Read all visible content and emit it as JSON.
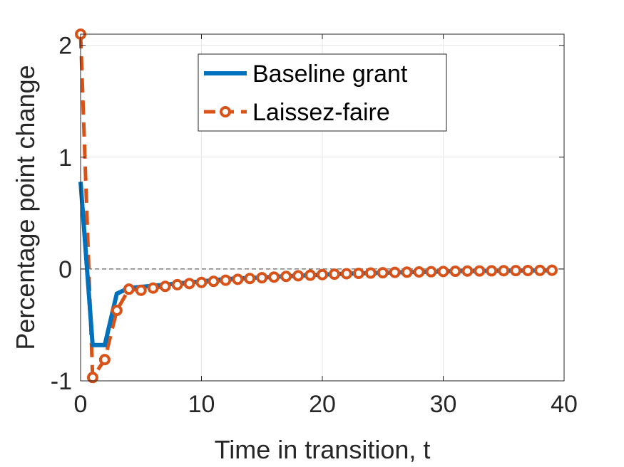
{
  "chart_data": {
    "type": "line",
    "title": "",
    "xlabel": "Time in transition, t",
    "ylabel": "Percentage point change",
    "xlim": [
      0,
      40
    ],
    "ylim": [
      -1,
      2.1
    ],
    "xticks": [
      0,
      10,
      20,
      30,
      40
    ],
    "xtick_labels": [
      "0",
      "10",
      "20",
      "30",
      "40"
    ],
    "yticks": [
      -1,
      0,
      1,
      2
    ],
    "ytick_labels": [
      "-1",
      "0",
      "1",
      "2"
    ],
    "grid": true,
    "reference_line_y": 0,
    "legend_position": "top-center",
    "x": [
      0,
      1,
      2,
      3,
      4,
      5,
      6,
      7,
      8,
      9,
      10,
      11,
      12,
      13,
      14,
      15,
      16,
      17,
      18,
      19,
      20,
      21,
      22,
      23,
      24,
      25,
      26,
      27,
      28,
      29,
      30,
      31,
      32,
      33,
      34,
      35,
      36,
      37,
      38,
      39
    ],
    "series": [
      {
        "name": "Baseline grant",
        "color": "#0072BD",
        "style": "solid",
        "values": [
          0.78,
          -0.68,
          -0.68,
          -0.22,
          -0.17,
          -0.16,
          -0.15,
          -0.14,
          -0.13,
          -0.12,
          -0.11,
          -0.1,
          -0.09,
          -0.085,
          -0.08,
          -0.075,
          -0.07,
          -0.065,
          -0.06,
          -0.055,
          -0.05,
          -0.046,
          -0.042,
          -0.039,
          -0.036,
          -0.033,
          -0.03,
          -0.028,
          -0.026,
          -0.024,
          -0.022,
          -0.02,
          -0.018,
          -0.017,
          -0.016,
          -0.015,
          -0.014,
          -0.013,
          -0.012,
          -0.011
        ]
      },
      {
        "name": "Laissez-faire",
        "color": "#D95319",
        "style": "dashed-circle",
        "values": [
          2.1,
          -0.97,
          -0.81,
          -0.37,
          -0.18,
          -0.19,
          -0.17,
          -0.155,
          -0.14,
          -0.13,
          -0.12,
          -0.11,
          -0.1,
          -0.092,
          -0.085,
          -0.078,
          -0.072,
          -0.066,
          -0.06,
          -0.055,
          -0.05,
          -0.046,
          -0.042,
          -0.039,
          -0.036,
          -0.033,
          -0.03,
          -0.028,
          -0.026,
          -0.024,
          -0.022,
          -0.02,
          -0.018,
          -0.017,
          -0.016,
          -0.015,
          -0.014,
          -0.013,
          -0.012,
          -0.011
        ]
      }
    ]
  }
}
